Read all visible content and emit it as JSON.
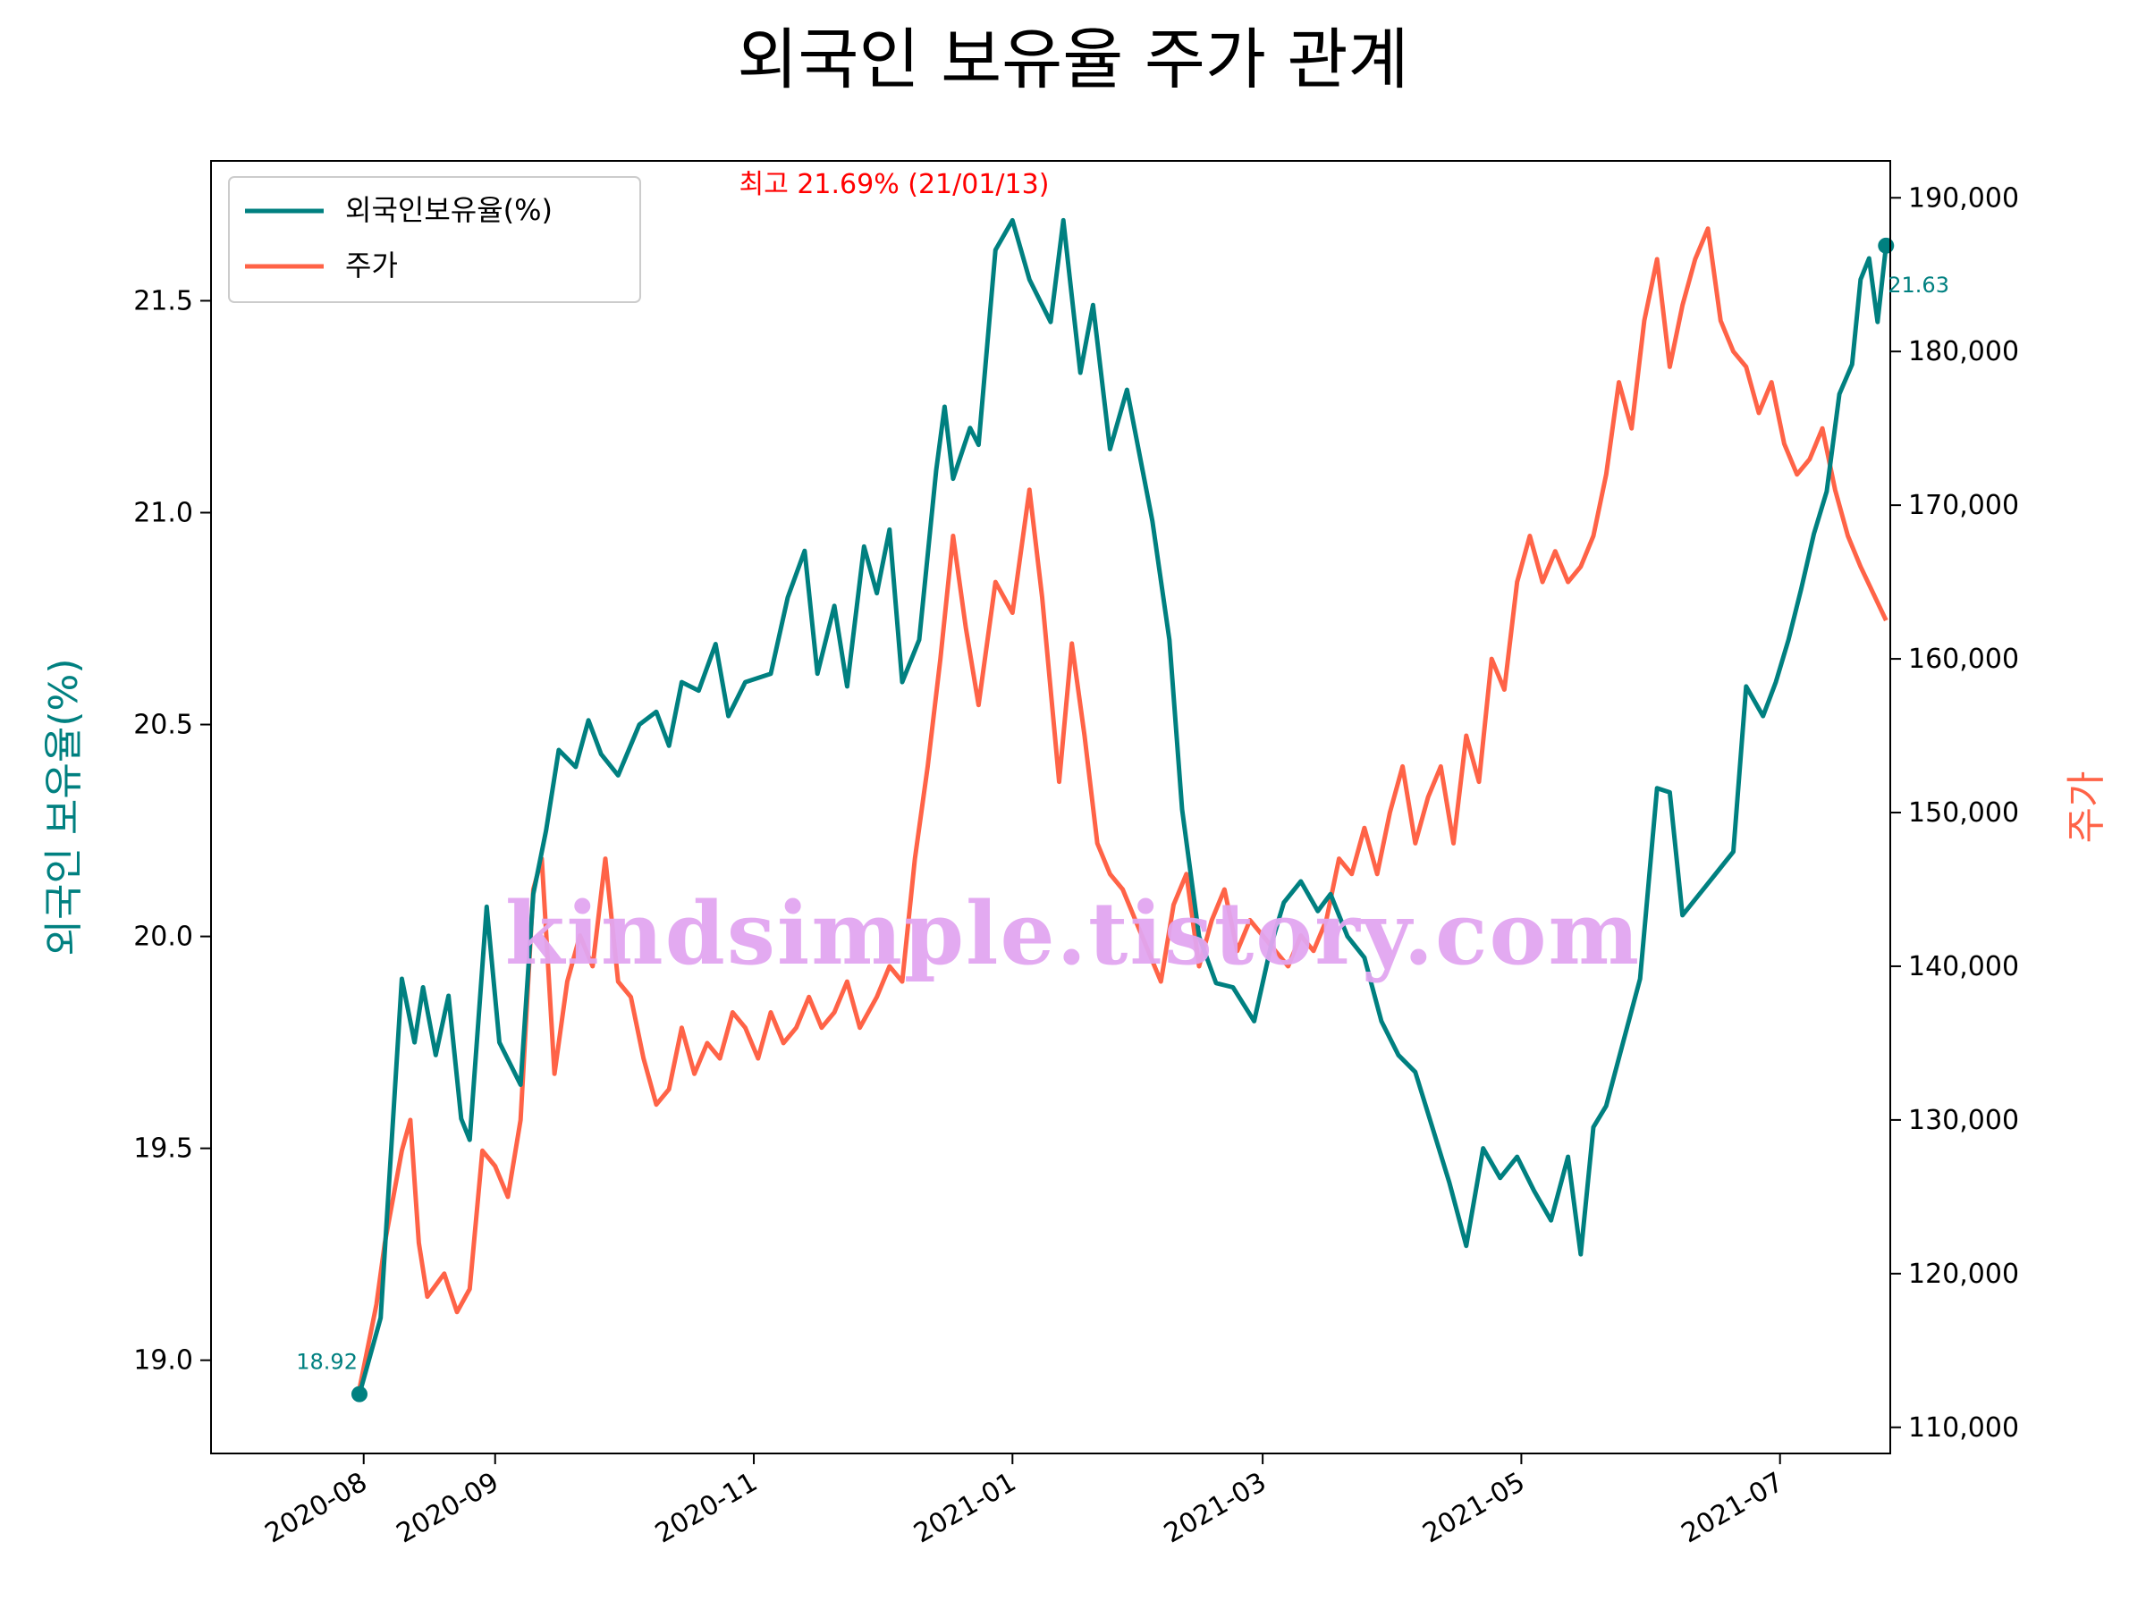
{
  "chart_data": {
    "type": "line",
    "title": "외국인 보유율 주가 관계",
    "xlabel": "",
    "ylabel_left": "외국인 보유율(%)",
    "ylabel_right": "주가",
    "x_ticks": [
      "2020-08",
      "2020-09",
      "2020-11",
      "2021-01",
      "2021-03",
      "2021-05",
      "2021-07"
    ],
    "y_left_ticks": [
      "19.0",
      "19.5",
      "20.0",
      "20.5",
      "21.0",
      "21.5"
    ],
    "y_right_ticks": [
      "110,000",
      "120,000",
      "130,000",
      "140,000",
      "150,000",
      "160,000",
      "170,000",
      "180,000",
      "190,000"
    ],
    "ylim_left": [
      18.78,
      21.83
    ],
    "ylim_right": [
      108300,
      192400
    ],
    "xlim": [
      "2020-06-26",
      "2021-07-27"
    ],
    "grid": false,
    "legend_position": "upper-left",
    "legend": [
      "외국인보유율(%)",
      "주가"
    ],
    "colors": {
      "foreign": "#008080",
      "price": "#ff6347",
      "max_annotation": "#ff0000"
    },
    "annotations": {
      "max": "최고 21.69% (21/01/13)",
      "start": "18.92",
      "end": "21.63"
    },
    "watermark": "kindsimple.tistory.com",
    "series": [
      {
        "name": "외국인보유율(%)",
        "axis": "left",
        "points": [
          [
            "2020-07-31",
            18.92
          ],
          [
            "2020-08-05",
            19.1
          ],
          [
            "2020-08-10",
            19.9
          ],
          [
            "2020-08-13",
            19.75
          ],
          [
            "2020-08-15",
            19.88
          ],
          [
            "2020-08-18",
            19.72
          ],
          [
            "2020-08-21",
            19.86
          ],
          [
            "2020-08-24",
            19.57
          ],
          [
            "2020-08-26",
            19.52
          ],
          [
            "2020-08-30",
            20.07
          ],
          [
            "2020-09-02",
            19.75
          ],
          [
            "2020-09-07",
            19.65
          ],
          [
            "2020-09-10",
            20.1
          ],
          [
            "2020-09-13",
            20.25
          ],
          [
            "2020-09-16",
            20.44
          ],
          [
            "2020-09-20",
            20.4
          ],
          [
            "2020-09-23",
            20.51
          ],
          [
            "2020-09-26",
            20.43
          ],
          [
            "2020-09-30",
            20.38
          ],
          [
            "2020-10-05",
            20.5
          ],
          [
            "2020-10-09",
            20.53
          ],
          [
            "2020-10-12",
            20.45
          ],
          [
            "2020-10-15",
            20.6
          ],
          [
            "2020-10-19",
            20.58
          ],
          [
            "2020-10-23",
            20.69
          ],
          [
            "2020-10-26",
            20.52
          ],
          [
            "2020-10-30",
            20.6
          ],
          [
            "2020-11-05",
            20.62
          ],
          [
            "2020-11-09",
            20.8
          ],
          [
            "2020-11-13",
            20.91
          ],
          [
            "2020-11-16",
            20.62
          ],
          [
            "2020-11-20",
            20.78
          ],
          [
            "2020-11-23",
            20.59
          ],
          [
            "2020-11-27",
            20.92
          ],
          [
            "2020-11-30",
            20.81
          ],
          [
            "2020-12-03",
            20.96
          ],
          [
            "2020-12-06",
            20.6
          ],
          [
            "2020-12-10",
            20.7
          ],
          [
            "2020-12-14",
            21.1
          ],
          [
            "2020-12-16",
            21.25
          ],
          [
            "2020-12-18",
            21.08
          ],
          [
            "2020-12-22",
            21.2
          ],
          [
            "2020-12-24",
            21.16
          ],
          [
            "2020-12-28",
            21.62
          ],
          [
            "2021-01-01",
            21.69
          ],
          [
            "2021-01-05",
            21.55
          ],
          [
            "2021-01-10",
            21.45
          ],
          [
            "2021-01-13",
            21.69
          ],
          [
            "2021-01-17",
            21.33
          ],
          [
            "2021-01-20",
            21.49
          ],
          [
            "2021-01-24",
            21.15
          ],
          [
            "2021-01-28",
            21.29
          ],
          [
            "2021-02-03",
            20.98
          ],
          [
            "2021-02-07",
            20.7
          ],
          [
            "2021-02-10",
            20.3
          ],
          [
            "2021-02-14",
            20.0
          ],
          [
            "2021-02-18",
            19.89
          ],
          [
            "2021-02-22",
            19.88
          ],
          [
            "2021-02-27",
            19.8
          ],
          [
            "2021-03-03",
            19.98
          ],
          [
            "2021-03-06",
            20.08
          ],
          [
            "2021-03-10",
            20.13
          ],
          [
            "2021-03-14",
            20.06
          ],
          [
            "2021-03-17",
            20.1
          ],
          [
            "2021-03-21",
            20.0
          ],
          [
            "2021-03-25",
            19.95
          ],
          [
            "2021-03-29",
            19.8
          ],
          [
            "2021-04-02",
            19.72
          ],
          [
            "2021-04-06",
            19.68
          ],
          [
            "2021-04-10",
            19.55
          ],
          [
            "2021-04-14",
            19.42
          ],
          [
            "2021-04-18",
            19.27
          ],
          [
            "2021-04-22",
            19.5
          ],
          [
            "2021-04-26",
            19.43
          ],
          [
            "2021-04-30",
            19.48
          ],
          [
            "2021-05-04",
            19.4
          ],
          [
            "2021-05-08",
            19.33
          ],
          [
            "2021-05-12",
            19.48
          ],
          [
            "2021-05-15",
            19.25
          ],
          [
            "2021-05-18",
            19.55
          ],
          [
            "2021-05-21",
            19.6
          ],
          [
            "2021-05-25",
            19.75
          ],
          [
            "2021-05-29",
            19.9
          ],
          [
            "2021-06-02",
            20.35
          ],
          [
            "2021-06-05",
            20.34
          ],
          [
            "2021-06-08",
            20.05
          ],
          [
            "2021-06-12",
            20.1
          ],
          [
            "2021-06-16",
            20.15
          ],
          [
            "2021-06-20",
            20.2
          ],
          [
            "2021-06-23",
            20.59
          ],
          [
            "2021-06-27",
            20.52
          ],
          [
            "2021-06-30",
            20.6
          ],
          [
            "2021-07-03",
            20.7
          ],
          [
            "2021-07-06",
            20.82
          ],
          [
            "2021-07-09",
            20.95
          ],
          [
            "2021-07-12",
            21.05
          ],
          [
            "2021-07-15",
            21.28
          ],
          [
            "2021-07-18",
            21.35
          ],
          [
            "2021-07-20",
            21.55
          ],
          [
            "2021-07-22",
            21.6
          ],
          [
            "2021-07-24",
            21.45
          ],
          [
            "2021-07-26",
            21.63
          ]
        ]
      },
      {
        "name": "주가",
        "axis": "right",
        "points": [
          [
            "2020-07-31",
            112500
          ],
          [
            "2020-08-04",
            118000
          ],
          [
            "2020-08-06",
            122000
          ],
          [
            "2020-08-10",
            128000
          ],
          [
            "2020-08-12",
            130000
          ],
          [
            "2020-08-14",
            122000
          ],
          [
            "2020-08-16",
            118500
          ],
          [
            "2020-08-20",
            120000
          ],
          [
            "2020-08-23",
            117500
          ],
          [
            "2020-08-26",
            119000
          ],
          [
            "2020-08-29",
            128000
          ],
          [
            "2020-09-01",
            127000
          ],
          [
            "2020-09-04",
            125000
          ],
          [
            "2020-09-07",
            130000
          ],
          [
            "2020-09-10",
            145000
          ],
          [
            "2020-09-12",
            147000
          ],
          [
            "2020-09-15",
            133000
          ],
          [
            "2020-09-18",
            139000
          ],
          [
            "2020-09-21",
            142000
          ],
          [
            "2020-09-24",
            140000
          ],
          [
            "2020-09-27",
            147000
          ],
          [
            "2020-09-30",
            139000
          ],
          [
            "2020-10-03",
            138000
          ],
          [
            "2020-10-06",
            134000
          ],
          [
            "2020-10-09",
            131000
          ],
          [
            "2020-10-12",
            132000
          ],
          [
            "2020-10-15",
            136000
          ],
          [
            "2020-10-18",
            133000
          ],
          [
            "2020-10-21",
            135000
          ],
          [
            "2020-10-24",
            134000
          ],
          [
            "2020-10-27",
            137000
          ],
          [
            "2020-10-30",
            136000
          ],
          [
            "2020-11-02",
            134000
          ],
          [
            "2020-11-05",
            137000
          ],
          [
            "2020-11-08",
            135000
          ],
          [
            "2020-11-11",
            136000
          ],
          [
            "2020-11-14",
            138000
          ],
          [
            "2020-11-17",
            136000
          ],
          [
            "2020-11-20",
            137000
          ],
          [
            "2020-11-23",
            139000
          ],
          [
            "2020-11-26",
            136000
          ],
          [
            "2020-11-30",
            138000
          ],
          [
            "2020-12-03",
            140000
          ],
          [
            "2020-12-06",
            139000
          ],
          [
            "2020-12-09",
            147000
          ],
          [
            "2020-12-12",
            153000
          ],
          [
            "2020-12-15",
            160000
          ],
          [
            "2020-12-18",
            168000
          ],
          [
            "2020-12-21",
            162000
          ],
          [
            "2020-12-24",
            157000
          ],
          [
            "2020-12-28",
            165000
          ],
          [
            "2021-01-01",
            163000
          ],
          [
            "2021-01-05",
            171000
          ],
          [
            "2021-01-08",
            164000
          ],
          [
            "2021-01-12",
            152000
          ],
          [
            "2021-01-15",
            161000
          ],
          [
            "2021-01-18",
            155000
          ],
          [
            "2021-01-21",
            148000
          ],
          [
            "2021-01-24",
            146000
          ],
          [
            "2021-01-27",
            145000
          ],
          [
            "2021-01-30",
            143000
          ],
          [
            "2021-02-02",
            141000
          ],
          [
            "2021-02-05",
            139000
          ],
          [
            "2021-02-08",
            144000
          ],
          [
            "2021-02-11",
            146000
          ],
          [
            "2021-02-14",
            140000
          ],
          [
            "2021-02-17",
            143000
          ],
          [
            "2021-02-20",
            145000
          ],
          [
            "2021-02-23",
            141000
          ],
          [
            "2021-02-26",
            143000
          ],
          [
            "2021-03-01",
            142000
          ],
          [
            "2021-03-04",
            141000
          ],
          [
            "2021-03-07",
            140000
          ],
          [
            "2021-03-10",
            142000
          ],
          [
            "2021-03-13",
            141000
          ],
          [
            "2021-03-16",
            143000
          ],
          [
            "2021-03-19",
            147000
          ],
          [
            "2021-03-22",
            146000
          ],
          [
            "2021-03-25",
            149000
          ],
          [
            "2021-03-28",
            146000
          ],
          [
            "2021-03-31",
            150000
          ],
          [
            "2021-04-03",
            153000
          ],
          [
            "2021-04-06",
            148000
          ],
          [
            "2021-04-09",
            151000
          ],
          [
            "2021-04-12",
            153000
          ],
          [
            "2021-04-15",
            148000
          ],
          [
            "2021-04-18",
            155000
          ],
          [
            "2021-04-21",
            152000
          ],
          [
            "2021-04-24",
            160000
          ],
          [
            "2021-04-27",
            158000
          ],
          [
            "2021-04-30",
            165000
          ],
          [
            "2021-05-03",
            168000
          ],
          [
            "2021-05-06",
            165000
          ],
          [
            "2021-05-09",
            167000
          ],
          [
            "2021-05-12",
            165000
          ],
          [
            "2021-05-15",
            166000
          ],
          [
            "2021-05-18",
            168000
          ],
          [
            "2021-05-21",
            172000
          ],
          [
            "2021-05-24",
            178000
          ],
          [
            "2021-05-27",
            175000
          ],
          [
            "2021-05-30",
            182000
          ],
          [
            "2021-06-02",
            186000
          ],
          [
            "2021-06-05",
            179000
          ],
          [
            "2021-06-08",
            183000
          ],
          [
            "2021-06-11",
            186000
          ],
          [
            "2021-06-14",
            188000
          ],
          [
            "2021-06-17",
            182000
          ],
          [
            "2021-06-20",
            180000
          ],
          [
            "2021-06-23",
            179000
          ],
          [
            "2021-06-26",
            176000
          ],
          [
            "2021-06-29",
            178000
          ],
          [
            "2021-07-02",
            174000
          ],
          [
            "2021-07-05",
            172000
          ],
          [
            "2021-07-08",
            173000
          ],
          [
            "2021-07-11",
            175000
          ],
          [
            "2021-07-14",
            171000
          ],
          [
            "2021-07-17",
            168000
          ],
          [
            "2021-07-20",
            166000
          ],
          [
            "2021-07-26",
            162500
          ]
        ]
      }
    ]
  }
}
